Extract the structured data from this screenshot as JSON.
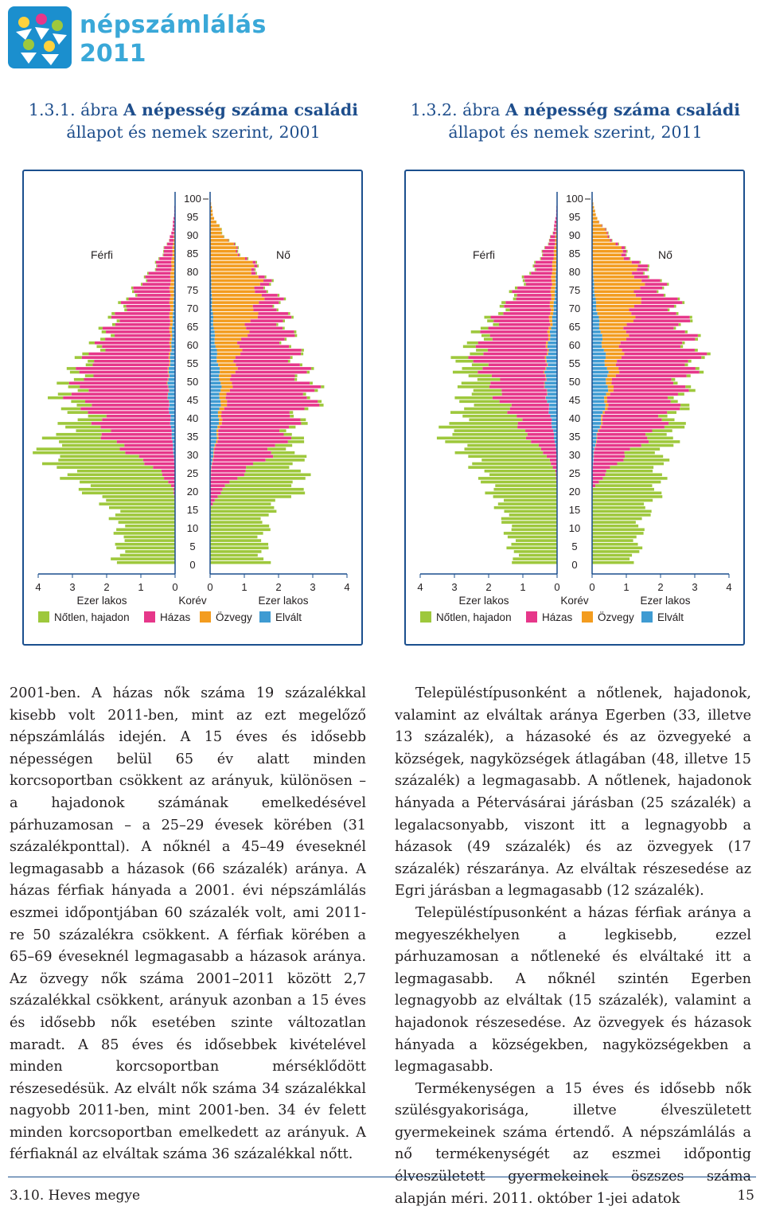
{
  "logo": {
    "line1": "népszámlálás",
    "line2": "2011"
  },
  "figures": [
    {
      "number": "1.3.1. ábra",
      "title_bold": "A népesség száma családi",
      "title_rest": "állapot és nemek szerint, 2001",
      "chart_data": {
        "type": "bar",
        "subtype": "population-pyramid-stacked",
        "x_unit": "Ezer lakos",
        "y_label": "Korév",
        "left_label": "Férfi",
        "right_label": "Nő",
        "xlim": [
          0,
          4
        ],
        "x_ticks_left": [
          "4",
          "3",
          "2",
          "1",
          "0"
        ],
        "x_ticks_right": [
          "0",
          "1",
          "2",
          "3",
          "4"
        ],
        "y_ticks": [
          "100",
          "95",
          "90",
          "85",
          "80",
          "75",
          "70",
          "65",
          "60",
          "55",
          "50",
          "45",
          "40",
          "35",
          "30",
          "25",
          "20",
          "15",
          "10",
          "5",
          "0"
        ],
        "ages": [
          0,
          5,
          10,
          15,
          20,
          25,
          30,
          35,
          40,
          45,
          50,
          55,
          60,
          65,
          70,
          75,
          80,
          85,
          90,
          95,
          100
        ],
        "series_names": [
          "Nőtlen, hajadon",
          "Házas",
          "Özvegy",
          "Elvált"
        ],
        "colors": [
          "#9ec83c",
          "#e6378a",
          "#f39c1f",
          "#3f9bd2"
        ],
        "male": {
          "Nőtlen, hajadon": [
            1.7,
            1.6,
            1.65,
            1.85,
            2.6,
            2.8,
            2.5,
            1.3,
            0.6,
            0.4,
            0.3,
            0.2,
            0.15,
            0.1,
            0.08,
            0.05,
            0.03,
            0.02,
            0.0,
            0.0,
            0.0
          ],
          "Házas": [
            0.0,
            0.0,
            0.0,
            0.0,
            0.05,
            0.45,
            1.3,
            2.0,
            2.1,
            2.75,
            2.5,
            2.4,
            1.95,
            1.7,
            1.35,
            0.95,
            0.5,
            0.25,
            0.07,
            0.02,
            0.0
          ],
          "Özvegy": [
            0.0,
            0.0,
            0.0,
            0.0,
            0.0,
            0.0,
            0.0,
            0.0,
            0.0,
            0.01,
            0.02,
            0.03,
            0.05,
            0.08,
            0.1,
            0.12,
            0.1,
            0.07,
            0.03,
            0.01,
            0.0
          ],
          "Elvált": [
            0.0,
            0.0,
            0.0,
            0.0,
            0.0,
            0.0,
            0.05,
            0.1,
            0.15,
            0.2,
            0.2,
            0.15,
            0.1,
            0.08,
            0.05,
            0.03,
            0.02,
            0.01,
            0.0,
            0.0,
            0.0
          ]
        },
        "female": {
          "Nőtlen, hajadon": [
            1.6,
            1.55,
            1.6,
            1.75,
            2.3,
            1.6,
            0.7,
            0.25,
            0.12,
            0.1,
            0.08,
            0.07,
            0.06,
            0.06,
            0.05,
            0.05,
            0.04,
            0.03,
            0.02,
            0.0,
            0.0
          ],
          "Házas": [
            0.0,
            0.0,
            0.0,
            0.02,
            0.35,
            1.0,
            1.7,
            2.0,
            2.15,
            2.6,
            2.1,
            1.8,
            1.4,
            1.05,
            0.65,
            0.3,
            0.1,
            0.04,
            0.0,
            0.0,
            0.0
          ],
          "Özvegy": [
            0.0,
            0.0,
            0.0,
            0.0,
            0.0,
            0.01,
            0.02,
            0.05,
            0.1,
            0.2,
            0.35,
            0.55,
            0.75,
            1.05,
            1.35,
            1.4,
            1.3,
            0.8,
            0.35,
            0.08,
            0.0
          ],
          "Elvált": [
            0.0,
            0.0,
            0.0,
            0.0,
            0.0,
            0.02,
            0.1,
            0.2,
            0.25,
            0.3,
            0.3,
            0.22,
            0.15,
            0.1,
            0.06,
            0.04,
            0.02,
            0.01,
            0.0,
            0.0,
            0.0
          ]
        }
      }
    },
    {
      "number": "1.3.2. ábra",
      "title_bold": "A népesség száma családi",
      "title_rest": "állapot és nemek szerint, 2011",
      "chart_data": {
        "type": "bar",
        "subtype": "population-pyramid-stacked",
        "x_unit": "Ezer lakos",
        "y_label": "Korév",
        "left_label": "Férfi",
        "right_label": "Nő",
        "xlim": [
          0,
          4
        ],
        "x_ticks_left": [
          "4",
          "3",
          "2",
          "1",
          "0"
        ],
        "x_ticks_right": [
          "0",
          "1",
          "2",
          "3",
          "4"
        ],
        "y_ticks": [
          "100",
          "95",
          "90",
          "85",
          "80",
          "75",
          "70",
          "65",
          "60",
          "55",
          "50",
          "45",
          "40",
          "35",
          "30",
          "25",
          "20",
          "15",
          "10",
          "5",
          "0"
        ],
        "ages": [
          0,
          5,
          10,
          15,
          20,
          25,
          30,
          35,
          40,
          45,
          50,
          55,
          60,
          65,
          70,
          75,
          80,
          85,
          90,
          95,
          100
        ],
        "series_names": [
          "Nőtlen, hajadon",
          "Házas",
          "Özvegy",
          "Elvált"
        ],
        "colors": [
          "#9ec83c",
          "#e6378a",
          "#f39c1f",
          "#3f9bd2"
        ],
        "male": {
          "Nőtlen, hajadon": [
            1.2,
            1.35,
            1.45,
            1.65,
            1.95,
            2.2,
            2.3,
            2.4,
            1.6,
            1.0,
            0.75,
            0.5,
            0.3,
            0.2,
            0.12,
            0.07,
            0.04,
            0.02,
            0.01,
            0.0,
            0.0
          ],
          "Házas": [
            0.0,
            0.0,
            0.0,
            0.0,
            0.0,
            0.05,
            0.35,
            0.85,
            1.0,
            1.4,
            1.5,
            2.05,
            1.85,
            1.7,
            1.25,
            0.95,
            0.55,
            0.3,
            0.08,
            0.02,
            0.0
          ],
          "Özvegy": [
            0.0,
            0.0,
            0.0,
            0.0,
            0.0,
            0.0,
            0.0,
            0.0,
            0.0,
            0.01,
            0.02,
            0.03,
            0.05,
            0.08,
            0.1,
            0.12,
            0.12,
            0.08,
            0.04,
            0.01,
            0.0
          ],
          "Elvált": [
            0.0,
            0.0,
            0.0,
            0.0,
            0.0,
            0.0,
            0.02,
            0.1,
            0.2,
            0.3,
            0.35,
            0.3,
            0.25,
            0.15,
            0.1,
            0.05,
            0.03,
            0.01,
            0.0,
            0.0,
            0.0
          ]
        },
        "female": {
          "Nőtlen, hajadon": [
            1.2,
            1.35,
            1.4,
            1.65,
            1.95,
            1.5,
            1.0,
            0.7,
            0.3,
            0.2,
            0.12,
            0.1,
            0.08,
            0.07,
            0.06,
            0.05,
            0.04,
            0.03,
            0.02,
            0.0,
            0.0
          ],
          "Házas": [
            0.0,
            0.0,
            0.0,
            0.0,
            0.02,
            0.45,
            1.0,
            1.6,
            1.85,
            2.0,
            1.95,
            2.3,
            1.95,
            1.6,
            1.2,
            0.65,
            0.3,
            0.1,
            0.03,
            0.0,
            0.0
          ],
          "Özvegy": [
            0.0,
            0.0,
            0.0,
            0.0,
            0.0,
            0.0,
            0.01,
            0.02,
            0.05,
            0.1,
            0.2,
            0.4,
            0.6,
            0.85,
            1.15,
            1.35,
            1.25,
            0.85,
            0.4,
            0.1,
            0.0
          ],
          "Elvált": [
            0.0,
            0.0,
            0.0,
            0.0,
            0.0,
            0.01,
            0.05,
            0.15,
            0.3,
            0.4,
            0.45,
            0.4,
            0.3,
            0.22,
            0.12,
            0.06,
            0.03,
            0.01,
            0.0,
            0.0,
            0.0
          ]
        }
      }
    }
  ],
  "left_column": [
    "2001-ben. A házas nők száma 19 százalékkal kisebb volt 2011-ben, mint az ezt megelőző népszámlálás idején. A 15 éves és idősebb népességen belül 65 év alatt minden korcsoportban csökkent az arányuk, különösen – a hajadonok számának emelkedésével párhuzamosan – a 25–29 évesek körében (31 százalékponttal). A nőknél a 45–49 éveseknél legmagasabb a házasok (66 százalék) aránya. A házas férfiak hányada a 2001. évi népszámlálás eszmei időpontjában 60 százalék volt, ami 2011-re 50 százalékra csökkent. A férfiak körében a 65–69 éveseknél legmagasabb a házasok aránya. Az özvegy nők száma 2001–2011 között 2,7 százalékkal csökkent, arányuk azonban a 15 éves és idősebb nők esetében szinte változatlan maradt. A 85 éves és idősebbek kivételével minden korcsoportban mérséklődött részesedésük. Az elvált nők száma 34 százalékkal nagyobb 2011-ben, mint 2001-ben. 34 év felett minden korcsoportban emelkedett az arányuk. A férfiaknál az elváltak száma 36 százalékkal nőtt."
  ],
  "right_column": [
    "Településtípusonként a nőtlenek, hajadonok, valamint az elváltak aránya Egerben (33, illetve 13 százalék), a házasoké és az özvegyeké a községek, nagyközségek átlagában (48, illetve 15 százalék) a legmagasabb. A nőtlenek, hajadonok hányada a Pétervásárai járásban (25 százalék) a legalacsonyabb, viszont itt a legnagyobb a házasok (49 százalék) és az özvegyek (17 százalék) részaránya. Az elváltak részesedése az Egri járásban a legmagasabb (12 százalék).",
    "Településtípusonként a házas férfiak aránya a megyeszékhelyen a legkisebb, ezzel párhuzamosan a nőtleneké és elváltaké itt a legmagasabb. A nőknél szintén Egerben legnagyobb az elváltak (15 százalék), valamint a hajadonok részesedése. Az özvegyek és házasok hányada a községekben, nagyközségekben a legmagasabb.",
    "Termékenységen a 15 éves és idősebb nők szülésgyakorisága, illetve élveszületett gyermekeinek száma értendő. A népszámlálás a nő termékenységét az eszmei időpontig élveszületett gyermekeinek öszszes száma alapján méri. 2011. október 1-jei adatok"
  ],
  "footer": {
    "left": "3.10. Heves megye",
    "right": "15"
  }
}
